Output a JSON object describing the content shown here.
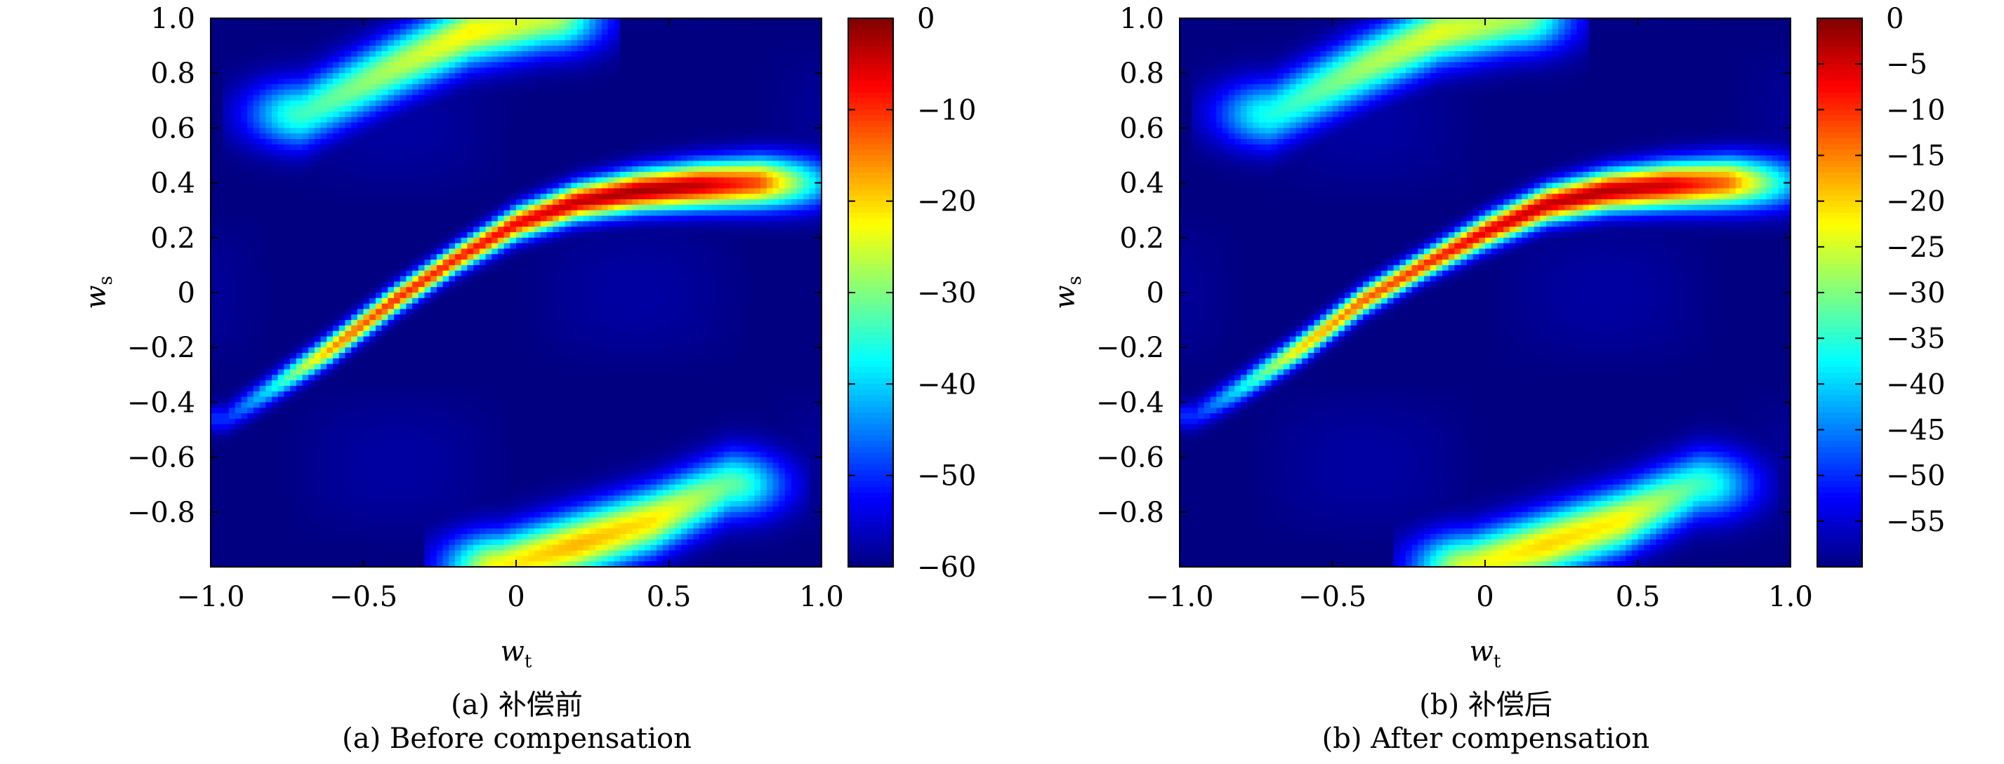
{
  "chart_data": [
    {
      "type": "heatmap",
      "xlabel": "w",
      "xlabel_sub": "t",
      "ylabel": "w",
      "ylabel_sub": "s",
      "xlim": [
        -1.0,
        1.0
      ],
      "ylim": [
        -1.0,
        1.0
      ],
      "xticks": [
        -1.0,
        -0.5,
        0,
        0.5,
        1.0
      ],
      "xtick_labels": [
        "−1.0",
        "−0.5",
        "0",
        "0.5",
        "1.0"
      ],
      "yticks": [
        1.0,
        0.8,
        0.6,
        0.4,
        0.2,
        0,
        -0.2,
        -0.4,
        -0.6,
        -0.8
      ],
      "ytick_labels": [
        "1.0",
        "0.8",
        "0.6",
        "0.4",
        "0.2",
        "0",
        "−0.2",
        "−0.4",
        "−0.6",
        "−0.8"
      ],
      "colorbar": {
        "range": [
          -60,
          0
        ],
        "ticks": [
          0,
          -10,
          -20,
          -30,
          -40,
          -50,
          -60
        ],
        "tick_labels": [
          "0",
          "−10",
          "−20",
          "−30",
          "−40",
          "−50",
          "−60"
        ]
      },
      "features": {
        "main_ridge": [
          [
            -0.95,
            -0.46,
            -50
          ],
          [
            -0.8,
            -0.35,
            -38
          ],
          [
            -0.6,
            -0.2,
            -16
          ],
          [
            -0.4,
            -0.03,
            -10
          ],
          [
            -0.2,
            0.12,
            -9
          ],
          [
            0.0,
            0.25,
            -7
          ],
          [
            0.2,
            0.33,
            -4
          ],
          [
            0.4,
            0.37,
            -2
          ],
          [
            0.6,
            0.39,
            -4
          ],
          [
            0.8,
            0.4,
            -12
          ],
          [
            1.0,
            0.4,
            -42
          ]
        ],
        "upper_lobe": [
          [
            -0.7,
            0.65,
            -34
          ],
          [
            -0.4,
            0.82,
            -27
          ],
          [
            -0.15,
            0.95,
            -22
          ],
          [
            0.1,
            1.0,
            -26
          ]
        ],
        "lower_lobe": [
          [
            -0.05,
            -1.0,
            -22
          ],
          [
            0.2,
            -0.92,
            -18
          ],
          [
            0.45,
            -0.83,
            -21
          ],
          [
            0.7,
            -0.7,
            -32
          ]
        ],
        "background_min": -60
      },
      "caption_cn": "(a) 补偿前",
      "caption_en": "(a) Before compensation"
    },
    {
      "type": "heatmap",
      "xlabel": "w",
      "xlabel_sub": "t",
      "ylabel": "w",
      "ylabel_sub": "s",
      "xlim": [
        -1.0,
        1.0
      ],
      "ylim": [
        -1.0,
        1.0
      ],
      "xticks": [
        -1.0,
        -0.5,
        0,
        0.5,
        1.0
      ],
      "xtick_labels": [
        "−1.0",
        "−0.5",
        "0",
        "0.5",
        "1.0"
      ],
      "yticks": [
        1.0,
        0.8,
        0.6,
        0.4,
        0.2,
        0,
        -0.2,
        -0.4,
        -0.6,
        -0.8
      ],
      "ytick_labels": [
        "1.0",
        "0.8",
        "0.6",
        "0.4",
        "0.2",
        "0",
        "−0.2",
        "−0.4",
        "−0.6",
        "−0.8"
      ],
      "colorbar": {
        "range": [
          -60,
          0
        ],
        "ticks": [
          0,
          -5,
          -10,
          -15,
          -20,
          -25,
          -30,
          -35,
          -40,
          -45,
          -50,
          -55
        ],
        "tick_labels": [
          "0",
          "−5",
          "−10",
          "−15",
          "−20",
          "−25",
          "−30",
          "−35",
          "−40",
          "−45",
          "−50",
          "−55"
        ]
      },
      "features": {
        "main_ridge": [
          [
            -0.95,
            -0.45,
            -50
          ],
          [
            -0.8,
            -0.35,
            -38
          ],
          [
            -0.6,
            -0.2,
            -20
          ],
          [
            -0.4,
            -0.03,
            -13
          ],
          [
            -0.2,
            0.1,
            -10
          ],
          [
            0.0,
            0.22,
            -6
          ],
          [
            0.2,
            0.32,
            -4
          ],
          [
            0.4,
            0.37,
            -3
          ],
          [
            0.6,
            0.39,
            -5
          ],
          [
            0.8,
            0.4,
            -14
          ],
          [
            1.0,
            0.4,
            -42
          ]
        ],
        "upper_lobe": [
          [
            -0.7,
            0.65,
            -36
          ],
          [
            -0.4,
            0.82,
            -28
          ],
          [
            -0.15,
            0.95,
            -24
          ],
          [
            0.1,
            1.0,
            -28
          ]
        ],
        "lower_lobe": [
          [
            -0.05,
            -1.0,
            -24
          ],
          [
            0.2,
            -0.92,
            -20
          ],
          [
            0.45,
            -0.83,
            -22
          ],
          [
            0.7,
            -0.7,
            -34
          ]
        ],
        "background_min": -60
      },
      "caption_cn": "(b) 补偿后",
      "caption_en": "(b) After compensation"
    }
  ]
}
